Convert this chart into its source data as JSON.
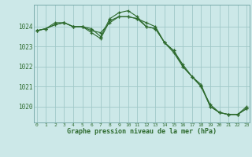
{
  "hours": [
    0,
    1,
    2,
    3,
    4,
    5,
    6,
    7,
    8,
    9,
    10,
    11,
    12,
    13,
    14,
    15,
    16,
    17,
    18,
    19,
    20,
    21,
    22,
    23
  ],
  "line1": [
    1023.8,
    1023.9,
    1024.1,
    1024.2,
    1024.0,
    1024.0,
    1023.8,
    1023.7,
    1024.2,
    1024.5,
    1024.5,
    1024.4,
    1024.0,
    1023.9,
    1023.2,
    1022.8,
    1022.1,
    1021.5,
    1021.1,
    1020.0,
    1019.7,
    1019.6,
    1019.6,
    1019.9
  ],
  "line2": [
    1023.8,
    1023.9,
    1024.2,
    1024.2,
    1024.0,
    1024.0,
    1023.7,
    1023.4,
    1024.3,
    1024.5,
    1024.5,
    1024.4,
    1024.2,
    1024.0,
    1023.2,
    1022.8,
    1022.0,
    1021.5,
    1021.0,
    1020.0,
    1019.7,
    1019.6,
    1019.6,
    1020.0
  ],
  "line3": [
    1023.8,
    1023.9,
    1024.1,
    1024.2,
    1024.0,
    1024.0,
    1023.9,
    1023.5,
    1024.4,
    1024.7,
    1024.8,
    1024.5,
    1024.0,
    1023.9,
    1023.2,
    1022.7,
    1022.0,
    1021.5,
    1021.0,
    1020.1,
    1019.7,
    1019.6,
    1019.6,
    1019.9
  ],
  "bg_color": "#cce8e8",
  "line_color": "#2d6a2d",
  "grid_color": "#a0c8c8",
  "xlabel": "Graphe pression niveau de la mer (hPa)",
  "xlabel_color": "#2d6a2d",
  "ylabel_ticks": [
    1020,
    1021,
    1022,
    1023,
    1024
  ],
  "ylim": [
    1019.2,
    1025.1
  ],
  "xlim": [
    -0.3,
    23.3
  ],
  "figsize": [
    3.2,
    2.0
  ],
  "dpi": 100
}
